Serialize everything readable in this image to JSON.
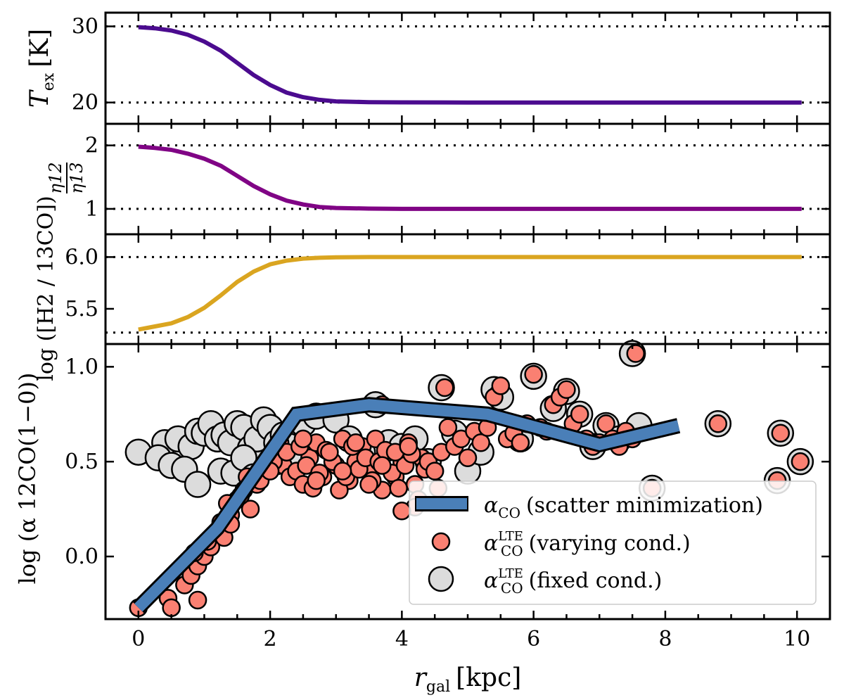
{
  "chart_data": {
    "type": "line",
    "shared_x": {
      "label_main": "r",
      "label_sub": "gal",
      "label_unit": "[kpc]",
      "range": [
        -0.5,
        10.5
      ],
      "ticks": [
        0,
        2,
        4,
        6,
        8,
        10
      ],
      "tick_labels": [
        "0",
        "2",
        "4",
        "6",
        "8",
        "10"
      ]
    },
    "panels": [
      {
        "id": "tex",
        "ylabel_main": "T",
        "ylabel_sub": "ex",
        "ylabel_unit": "[K]",
        "ylim": [
          17.2,
          31.8
        ],
        "ticks": [
          20,
          30
        ],
        "tick_labels": [
          "20",
          "30"
        ],
        "reference_lines": [
          20,
          30
        ],
        "line_color": "#4b0b8f",
        "x": [
          0,
          0.25,
          0.5,
          0.75,
          1.0,
          1.25,
          1.5,
          1.75,
          2.0,
          2.25,
          2.5,
          2.75,
          3.0,
          3.5,
          4.0,
          5,
          6,
          7,
          8,
          9,
          10.07
        ],
        "y": [
          29.9,
          29.75,
          29.45,
          28.9,
          28.0,
          26.8,
          25.2,
          23.6,
          22.3,
          21.3,
          20.7,
          20.35,
          20.15,
          20.05,
          20.02,
          20.0,
          20.0,
          20.0,
          20.0,
          20.0,
          20.0
        ]
      },
      {
        "id": "eta",
        "ylabel_num": "η12",
        "ylabel_den": "η13",
        "ylim": [
          0.6,
          2.34
        ],
        "ticks": [
          1,
          2
        ],
        "tick_labels": [
          "1",
          "2"
        ],
        "reference_lines": [
          1,
          2
        ],
        "line_color": "#800485",
        "x": [
          0,
          0.25,
          0.5,
          0.75,
          1.0,
          1.25,
          1.5,
          1.75,
          2.0,
          2.25,
          2.5,
          2.75,
          3.0,
          3.5,
          4.0,
          5,
          6,
          7,
          8,
          9,
          10.07
        ],
        "y": [
          1.98,
          1.96,
          1.93,
          1.87,
          1.79,
          1.68,
          1.52,
          1.36,
          1.23,
          1.13,
          1.07,
          1.03,
          1.015,
          1.005,
          1.0,
          1.0,
          1.0,
          1.0,
          1.0,
          1.0,
          1.0
        ]
      },
      {
        "id": "h2co",
        "ylabel": "log ([H2 / 13CO])",
        "ylim": [
          5.16,
          6.22
        ],
        "ticks": [
          5.5,
          6.0
        ],
        "tick_labels": [
          "5.5",
          "6.0"
        ],
        "reference_lines": [
          5.27,
          6.0
        ],
        "line_color": "#daa520",
        "x": [
          0,
          0.25,
          0.5,
          0.75,
          1.0,
          1.25,
          1.5,
          1.75,
          2.0,
          2.25,
          2.5,
          2.75,
          3.0,
          3.5,
          4.0,
          5,
          6,
          7,
          8,
          9,
          10.07
        ],
        "y": [
          5.3,
          5.33,
          5.36,
          5.42,
          5.51,
          5.63,
          5.76,
          5.86,
          5.93,
          5.965,
          5.985,
          5.993,
          5.997,
          6.0,
          6.0,
          6.0,
          6.0,
          6.0,
          6.0,
          6.0,
          6.0
        ]
      },
      {
        "id": "alpha",
        "ylabel": "log (α 12CO(1−0))",
        "ylim": [
          -0.33,
          1.12
        ],
        "ticks": [
          0.0,
          0.5,
          1.0
        ],
        "tick_labels": [
          "0.0",
          "0.5",
          "1.0"
        ],
        "series": [
          {
            "name": "αCO (scatter minimization)",
            "kind": "line",
            "color": "#4a7fb8",
            "x": [
              0.0,
              1.2,
              2.4,
              3.5,
              5.3,
              7.0,
              8.2
            ],
            "y": [
              -0.27,
              0.15,
              0.75,
              0.8,
              0.75,
              0.59,
              0.69
            ]
          },
          {
            "name": "αCO LTE (fixed cond.)",
            "kind": "scatter",
            "color": "#dcdcdc",
            "x": [
              0.0,
              0.4,
              0.6,
              0.8,
              0.9,
              1.0,
              1.1,
              1.2,
              1.3,
              1.4,
              1.5,
              1.6,
              1.7,
              1.8,
              1.9,
              2.0,
              2.1,
              2.2,
              2.3,
              0.3,
              0.5,
              0.7,
              1.25,
              1.45,
              0.9,
              1.6,
              1.75,
              2.1,
              2.3,
              2.5,
              2.7,
              3.0,
              3.2,
              3.4,
              3.6,
              3.8,
              4.0,
              4.2,
              4.4,
              4.6,
              4.8,
              5.0,
              5.2,
              5.4,
              5.5,
              5.8,
              6.0,
              6.3,
              6.5,
              6.7,
              6.9,
              7.1,
              7.3,
              7.5,
              7.6,
              7.8,
              8.8,
              9.7,
              9.75,
              10.05
            ],
            "y": [
              0.55,
              0.6,
              0.62,
              0.58,
              0.66,
              0.65,
              0.7,
              0.62,
              0.64,
              0.6,
              0.7,
              0.68,
              0.57,
              0.62,
              0.72,
              0.68,
              0.6,
              0.64,
              0.58,
              0.52,
              0.48,
              0.46,
              0.45,
              0.44,
              0.38,
              0.52,
              0.42,
              0.5,
              0.52,
              0.7,
              0.74,
              0.72,
              0.62,
              0.55,
              0.8,
              0.6,
              0.58,
              0.62,
              0.5,
              0.89,
              0.65,
              0.45,
              0.55,
              0.88,
              0.84,
              0.62,
              0.95,
              0.78,
              0.87,
              0.75,
              0.58,
              0.69,
              0.62,
              1.07,
              0.69,
              0.36,
              0.7,
              0.4,
              0.65,
              0.5
            ]
          },
          {
            "name": "αCO LTE (varying cond.)",
            "kind": "scatter",
            "color": "#fa8072",
            "x": [
              0.0,
              0.45,
              0.5,
              0.7,
              0.8,
              0.9,
              1.0,
              1.1,
              1.2,
              1.3,
              1.4,
              1.5,
              1.6,
              1.7,
              1.8,
              1.9,
              2.0,
              2.1,
              2.2,
              2.3,
              0.85,
              1.05,
              1.25,
              1.35,
              1.55,
              1.65,
              1.85,
              2.05,
              2.15,
              2.25,
              2.4,
              2.5,
              2.6,
              2.7,
              2.8,
              2.9,
              3.0,
              3.1,
              3.2,
              3.3,
              3.4,
              3.5,
              3.6,
              3.7,
              3.8,
              3.9,
              4.0,
              4.1,
              4.2,
              4.3,
              2.45,
              2.55,
              2.65,
              2.75,
              2.85,
              2.95,
              3.05,
              3.15,
              3.25,
              3.35,
              3.45,
              3.55,
              3.65,
              3.75,
              3.85,
              3.95,
              4.05,
              4.15,
              4.25,
              4.35,
              2.5,
              2.7,
              2.9,
              3.1,
              3.3,
              3.5,
              3.7,
              3.9,
              4.1,
              4.4,
              4.5,
              4.6,
              4.7,
              4.8,
              4.9,
              5.0,
              5.1,
              5.2,
              5.3,
              5.4,
              5.5,
              5.6,
              5.7,
              5.8,
              5.9,
              6.0,
              6.1,
              6.2,
              6.3,
              6.4,
              6.5,
              6.6,
              6.7,
              6.8,
              6.9,
              7.0,
              7.1,
              7.2,
              7.3,
              7.4,
              7.5,
              7.55,
              7.8,
              8.8,
              9.7,
              9.75,
              10.05,
              3.7,
              4.65,
              4.55,
              4.2,
              4.0,
              0.9,
              1.4,
              2.0
            ],
            "y": [
              -0.27,
              -0.22,
              -0.27,
              -0.15,
              -0.1,
              -0.05,
              0.0,
              0.05,
              0.12,
              0.1,
              0.22,
              0.3,
              0.35,
              0.25,
              0.38,
              0.45,
              0.52,
              0.55,
              0.48,
              0.42,
              0.02,
              0.08,
              0.18,
              0.28,
              0.32,
              0.42,
              0.4,
              0.5,
              0.6,
              0.55,
              0.45,
              0.38,
              0.52,
              0.6,
              0.42,
              0.55,
              0.48,
              0.62,
              0.4,
              0.5,
              0.58,
              0.45,
              0.62,
              0.35,
              0.55,
              0.42,
              0.5,
              0.6,
              0.38,
              0.52,
              0.58,
              0.48,
              0.36,
              0.44,
              0.56,
              0.5,
              0.35,
              0.42,
              0.58,
              0.46,
              0.52,
              0.4,
              0.5,
              0.56,
              0.44,
              0.36,
              0.48,
              0.54,
              0.3,
              0.46,
              0.62,
              0.4,
              0.55,
              0.45,
              0.6,
              0.38,
              0.48,
              0.55,
              0.58,
              0.5,
              0.45,
              0.55,
              0.68,
              0.58,
              0.62,
              0.52,
              0.66,
              0.6,
              0.68,
              0.84,
              0.9,
              0.62,
              0.65,
              0.6,
              0.7,
              0.96,
              0.68,
              0.66,
              0.8,
              0.84,
              0.88,
              0.7,
              0.75,
              0.62,
              0.58,
              0.6,
              0.7,
              0.62,
              0.58,
              0.66,
              0.62,
              1.07,
              0.36,
              0.7,
              0.4,
              0.65,
              0.5,
              0.8,
              0.89,
              0.36,
              0.26,
              0.24,
              -0.23,
              0.17,
              0.45
            ]
          }
        ],
        "legend": {
          "placement": "lower-right",
          "entries": [
            {
              "sym": "α",
              "sub": "CO",
              "sup": "",
              "text": "(scatter minimization)",
              "marker": "line"
            },
            {
              "sym": "α",
              "sub": "CO",
              "sup": "LTE",
              "text": "(varying cond.)",
              "marker": "salmon-circle"
            },
            {
              "sym": "α",
              "sub": "CO",
              "sup": "LTE",
              "text": "(fixed cond.)",
              "marker": "gray-circle"
            }
          ]
        }
      }
    ]
  }
}
